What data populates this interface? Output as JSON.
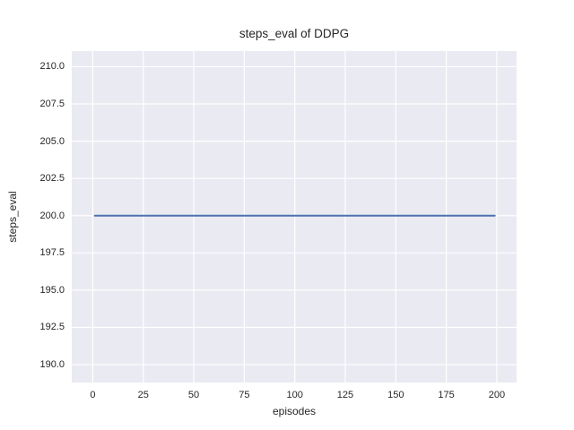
{
  "figure": {
    "title": "steps_eval of DDPG",
    "xlabel": "episodes",
    "ylabel": "steps_eval"
  },
  "colors": {
    "figure_background": "#FFFFFF",
    "axes_background": "#EAEAF2",
    "gridline": "#FFFFFF",
    "series_line": "#4C72B0",
    "text": "#262626"
  },
  "chart_data": {
    "type": "line",
    "title": "steps_eval of DDPG",
    "xlabel": "episodes",
    "ylabel": "steps_eval",
    "x_ticks": [
      0,
      25,
      50,
      75,
      100,
      125,
      150,
      175,
      200
    ],
    "y_ticks": [
      190.0,
      192.5,
      195.0,
      197.5,
      200.0,
      202.5,
      205.0,
      207.5,
      210.0
    ],
    "xlim": [
      -10.4,
      209.8
    ],
    "ylim": [
      188.8,
      211.05
    ],
    "grid": true,
    "legend": false,
    "series": [
      {
        "name": "steps_eval",
        "color": "#4C72B0",
        "x": [
          1,
          199
        ],
        "y": [
          200,
          200
        ],
        "note": "constant horizontal line at steps_eval = 200 across all evaluated episodes (1 to 199)"
      }
    ]
  }
}
